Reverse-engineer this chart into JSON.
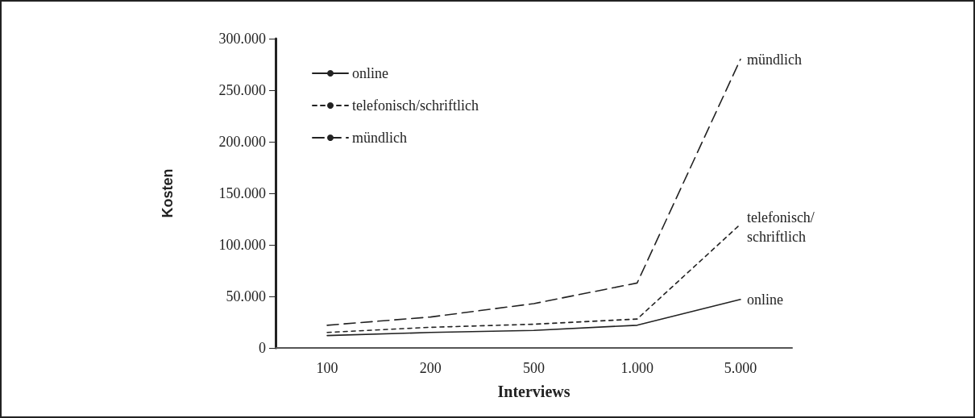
{
  "chart_data": {
    "type": "line",
    "xlabel": "Interviews",
    "ylabel": "Kosten",
    "categories": [
      "100",
      "200",
      "500",
      "1.000",
      "5.000"
    ],
    "series": [
      {
        "name": "online",
        "color": "#222222",
        "line_style": "solid",
        "values": [
          12000,
          15000,
          17000,
          22000,
          47000
        ]
      },
      {
        "name": "telefonisch/schriftlich",
        "color": "#222222",
        "line_style": "dotted",
        "values": [
          15000,
          20000,
          23000,
          28000,
          120000
        ]
      },
      {
        "name": "mündlich",
        "color": "#222222",
        "line_style": "dashed",
        "values": [
          22000,
          30000,
          43000,
          63000,
          280000
        ]
      }
    ],
    "ylim": [
      0,
      300000
    ],
    "yticks": [
      {
        "value": 0,
        "label": "0"
      },
      {
        "value": 50000,
        "label": "50.000"
      },
      {
        "value": 100000,
        "label": "100.000"
      },
      {
        "value": 150000,
        "label": "150.000"
      },
      {
        "value": 200000,
        "label": "200.000"
      },
      {
        "value": 250000,
        "label": "250.000"
      },
      {
        "value": 300000,
        "label": "300.000"
      }
    ],
    "annotations": [
      {
        "text": "mündlich",
        "x": "5.000",
        "y": 280000
      },
      {
        "text": "telefonisch/\nschriftlich",
        "x": "5.000",
        "y": 120000
      },
      {
        "text": "online",
        "x": "5.000",
        "y": 47000
      }
    ],
    "legend": "top left",
    "grid": false,
    "marker": "none"
  }
}
